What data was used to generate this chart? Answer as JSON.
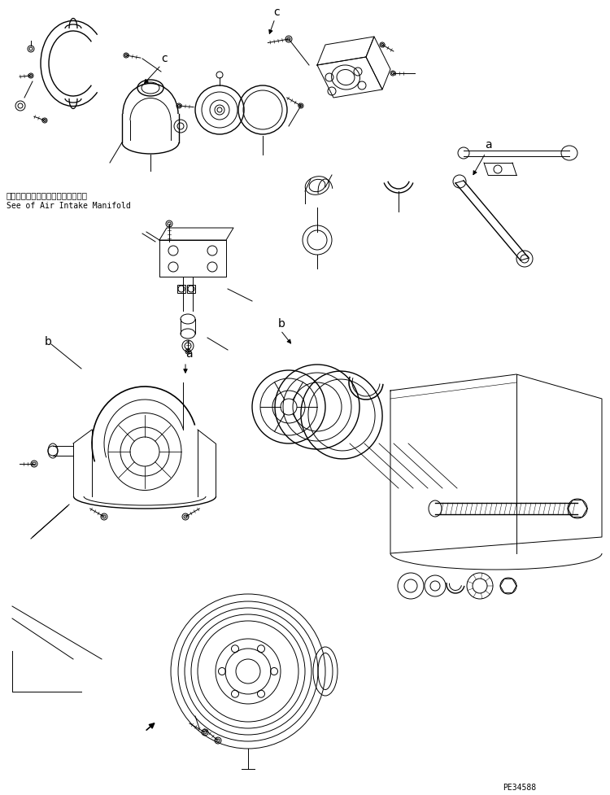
{
  "bg_color": "#ffffff",
  "line_color": "#000000",
  "fig_width": 7.5,
  "fig_height": 9.77,
  "dpi": 100,
  "part_code": "PE34588",
  "label_a1": "a",
  "label_b1": "b",
  "label_b2": "b",
  "label_c1": "c",
  "label_c2": "c",
  "label_a2": "a",
  "japanese_text": "エアーインテークマニホールド参照",
  "english_text": "See of Air Intake Manifold"
}
